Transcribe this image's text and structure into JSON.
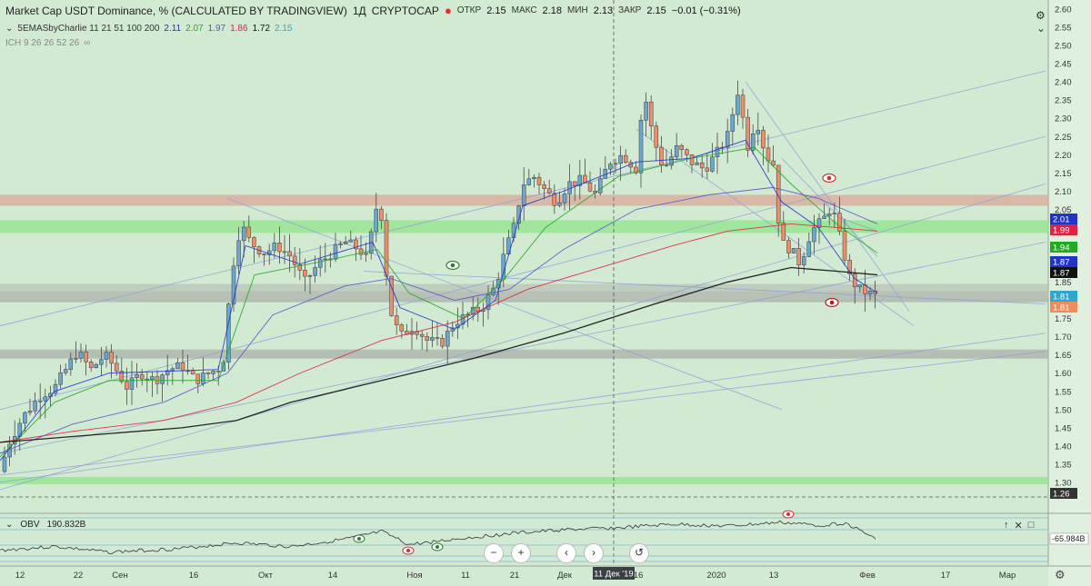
{
  "header": {
    "symbol_title": "Market Cap USDT Dominance, % (CALCULATED BY TRADINGVIEW)",
    "interval": "1Д",
    "exchange": "CRYPTOCAP",
    "open_label": "ОТКР",
    "open_value": "2.15",
    "high_label": "МАКС",
    "high_value": "2.18",
    "low_label": "МИН",
    "low_value": "2.13",
    "close_label": "ЗАКР",
    "close_value": "2.15",
    "change": "−0.01 (−0.31%)"
  },
  "indicators": {
    "ema": {
      "label": "5EMASbyCharlie 11 21 51 100 200",
      "v1": "2.11",
      "v2": "2.07",
      "v3": "1.97",
      "v4": "1.86",
      "v5": "1.72",
      "v6": "2.15"
    },
    "ich": {
      "label": "ICH 9 26 26 52 26"
    },
    "obv": {
      "label": "OBV",
      "value": "190.832B",
      "scale_value": "-65.984B"
    }
  },
  "toolbar": {
    "zoom_out": "−",
    "zoom_in": "+",
    "scroll_left": "‹",
    "scroll_right": "›",
    "reset": "↺",
    "up_icon": "↑",
    "close_icon": "✕",
    "maximize_icon": "□",
    "collapse_icon": "⌄",
    "cross_icon": "+",
    "settings_icon": "⚙"
  },
  "colors": {
    "background": "#d3ead2",
    "up_candle": "#6ca7ce",
    "down_candle": "#ec8f6a",
    "ema11": "#2233cc",
    "ema21": "#22aa22",
    "ema51": "#5555cc",
    "ema100": "#dd2244",
    "ema200": "#111111",
    "price_badge": "#2ea6d0"
  },
  "chart_data": {
    "type": "candlestick",
    "ylim": [
      1.25,
      2.61
    ],
    "ytick_labels": [
      "1.30",
      "1.35",
      "1.40",
      "1.45",
      "1.50",
      "1.55",
      "1.60",
      "1.65",
      "1.70",
      "1.75",
      "1.80",
      "1.85",
      "1.90",
      "1.95",
      "2.00",
      "2.05",
      "2.10",
      "2.15",
      "2.20",
      "2.25",
      "2.30",
      "2.35",
      "2.40",
      "2.45",
      "2.50",
      "2.55",
      "2.60"
    ],
    "xtick_labels": [
      "12",
      "22",
      "Сен",
      "16",
      "Окт",
      "14",
      "Ноя",
      "11",
      "21",
      "Дек",
      "16",
      "2020",
      "13",
      "Фев",
      "17",
      "Мар"
    ],
    "crosshair_date": "11 Дек '19",
    "price_badges": [
      {
        "value": "2.01",
        "color": "#2233cc"
      },
      {
        "value": "1.99",
        "color": "#dd2244"
      },
      {
        "value": "1.94",
        "color": "#22aa22"
      },
      {
        "value": "1.87",
        "color": "#2233cc"
      },
      {
        "value": "1.87",
        "color": "#111111"
      },
      {
        "value": "1.81",
        "color": "#2ea6d0"
      },
      {
        "value": "1.81",
        "color": "#ef8c5c"
      },
      {
        "value": "1.26",
        "color": "#333333"
      }
    ],
    "zones": [
      {
        "from": 2.06,
        "to": 2.09,
        "color": "#d9a89a"
      },
      {
        "from": 1.985,
        "to": 2.02,
        "color": "#8fe48a"
      },
      {
        "from": 1.795,
        "to": 1.825,
        "color": "#aab0a8"
      },
      {
        "from": 1.805,
        "to": 1.845,
        "color": "#b9c1b6"
      },
      {
        "from": 1.64,
        "to": 1.665,
        "color": "#aab0a8"
      },
      {
        "from": 1.295,
        "to": 1.315,
        "color": "#8fe48a"
      }
    ],
    "close_path": [
      [
        0,
        1.33
      ],
      [
        10,
        1.41
      ],
      [
        25,
        1.48
      ],
      [
        45,
        1.54
      ],
      [
        60,
        1.56
      ],
      [
        75,
        1.62
      ],
      [
        85,
        1.66
      ],
      [
        100,
        1.61
      ],
      [
        115,
        1.65
      ],
      [
        125,
        1.62
      ],
      [
        140,
        1.56
      ],
      [
        155,
        1.6
      ],
      [
        170,
        1.58
      ],
      [
        185,
        1.61
      ],
      [
        200,
        1.62
      ],
      [
        215,
        1.58
      ],
      [
        230,
        1.6
      ],
      [
        245,
        1.62
      ],
      [
        255,
        1.88
      ],
      [
        265,
        2.01
      ],
      [
        275,
        1.96
      ],
      [
        290,
        1.93
      ],
      [
        305,
        1.95
      ],
      [
        320,
        1.92
      ],
      [
        335,
        1.85
      ],
      [
        350,
        1.9
      ],
      [
        365,
        1.93
      ],
      [
        380,
        1.96
      ],
      [
        395,
        1.94
      ],
      [
        405,
        1.91
      ],
      [
        412,
        2.06
      ],
      [
        420,
        2.03
      ],
      [
        428,
        1.78
      ],
      [
        440,
        1.7
      ],
      [
        455,
        1.73
      ],
      [
        470,
        1.69
      ],
      [
        485,
        1.68
      ],
      [
        500,
        1.74
      ],
      [
        515,
        1.76
      ],
      [
        530,
        1.78
      ],
      [
        545,
        1.84
      ],
      [
        555,
        1.93
      ],
      [
        565,
        2.0
      ],
      [
        575,
        2.12
      ],
      [
        588,
        2.14
      ],
      [
        600,
        2.1
      ],
      [
        612,
        2.07
      ],
      [
        625,
        2.12
      ],
      [
        640,
        2.13
      ],
      [
        655,
        2.09
      ],
      [
        670,
        2.18
      ],
      [
        685,
        2.2
      ],
      [
        700,
        2.16
      ],
      [
        708,
        2.38
      ],
      [
        718,
        2.25
      ],
      [
        730,
        2.16
      ],
      [
        745,
        2.22
      ],
      [
        760,
        2.18
      ],
      [
        775,
        2.16
      ],
      [
        790,
        2.21
      ],
      [
        800,
        2.25
      ],
      [
        812,
        2.38
      ],
      [
        822,
        2.22
      ],
      [
        832,
        2.3
      ],
      [
        842,
        2.2
      ],
      [
        852,
        2.17
      ],
      [
        858,
        1.96
      ],
      [
        870,
        1.94
      ],
      [
        880,
        1.9
      ],
      [
        892,
        1.99
      ],
      [
        905,
        2.02
      ],
      [
        915,
        2.06
      ],
      [
        925,
        1.96
      ],
      [
        935,
        1.86
      ],
      [
        945,
        1.83
      ],
      [
        955,
        1.82
      ],
      [
        965,
        1.81
      ]
    ],
    "ema_series": [
      {
        "name": "11",
        "values": [
          [
            0,
            1.36
          ],
          [
            60,
            1.55
          ],
          [
            120,
            1.6
          ],
          [
            240,
            1.61
          ],
          [
            270,
            1.95
          ],
          [
            330,
            1.9
          ],
          [
            410,
            1.96
          ],
          [
            440,
            1.78
          ],
          [
            500,
            1.72
          ],
          [
            545,
            1.8
          ],
          [
            575,
            2.06
          ],
          [
            620,
            2.1
          ],
          [
            700,
            2.18
          ],
          [
            760,
            2.19
          ],
          [
            820,
            2.24
          ],
          [
            860,
            2.07
          ],
          [
            900,
            2.0
          ],
          [
            940,
            1.86
          ],
          [
            965,
            1.82
          ]
        ]
      },
      {
        "name": "21",
        "values": [
          [
            0,
            1.37
          ],
          [
            60,
            1.52
          ],
          [
            120,
            1.58
          ],
          [
            240,
            1.58
          ],
          [
            280,
            1.87
          ],
          [
            360,
            1.91
          ],
          [
            415,
            1.94
          ],
          [
            450,
            1.82
          ],
          [
            510,
            1.75
          ],
          [
            555,
            1.86
          ],
          [
            600,
            2.0
          ],
          [
            680,
            2.14
          ],
          [
            760,
            2.19
          ],
          [
            830,
            2.22
          ],
          [
            870,
            2.12
          ],
          [
            920,
            2.01
          ],
          [
            965,
            1.93
          ]
        ]
      },
      {
        "name": "51",
        "values": [
          [
            0,
            1.38
          ],
          [
            80,
            1.46
          ],
          [
            180,
            1.52
          ],
          [
            250,
            1.6
          ],
          [
            300,
            1.76
          ],
          [
            380,
            1.84
          ],
          [
            430,
            1.86
          ],
          [
            500,
            1.8
          ],
          [
            560,
            1.83
          ],
          [
            620,
            1.94
          ],
          [
            700,
            2.05
          ],
          [
            780,
            2.09
          ],
          [
            850,
            2.11
          ],
          [
            900,
            2.08
          ],
          [
            965,
            2.01
          ]
        ]
      },
      {
        "name": "100",
        "values": [
          [
            0,
            1.41
          ],
          [
            80,
            1.44
          ],
          [
            180,
            1.47
          ],
          [
            260,
            1.52
          ],
          [
            330,
            1.6
          ],
          [
            420,
            1.69
          ],
          [
            500,
            1.74
          ],
          [
            580,
            1.83
          ],
          [
            660,
            1.89
          ],
          [
            740,
            1.95
          ],
          [
            800,
            1.99
          ],
          [
            870,
            2.01
          ],
          [
            920,
            2.0
          ],
          [
            965,
            1.99
          ]
        ]
      },
      {
        "name": "200",
        "values": [
          [
            0,
            1.41
          ],
          [
            100,
            1.43
          ],
          [
            200,
            1.45
          ],
          [
            260,
            1.47
          ],
          [
            320,
            1.52
          ],
          [
            420,
            1.58
          ],
          [
            520,
            1.64
          ],
          [
            620,
            1.71
          ],
          [
            720,
            1.79
          ],
          [
            800,
            1.85
          ],
          [
            870,
            1.89
          ],
          [
            920,
            1.88
          ],
          [
            965,
            1.87
          ]
        ]
      }
    ],
    "trend_lines": [
      [
        [
          0,
          1.28
        ],
        [
          1150,
          2.12
        ]
      ],
      [
        [
          0,
          1.38
        ],
        [
          1150,
          1.96
        ]
      ],
      [
        [
          0,
          1.3
        ],
        [
          1150,
          1.71
        ]
      ],
      [
        [
          0,
          1.5
        ],
        [
          1150,
          2.25
        ]
      ],
      [
        [
          0,
          1.32
        ],
        [
          1150,
          1.66
        ]
      ],
      [
        [
          250,
          2.08
        ],
        [
          860,
          1.5
        ]
      ],
      [
        [
          700,
          2.27
        ],
        [
          1005,
          1.73
        ]
      ],
      [
        [
          820,
          2.4
        ],
        [
          1000,
          1.77
        ]
      ],
      [
        [
          860,
          2.19
        ],
        [
          965,
          1.92
        ]
      ],
      [
        [
          920,
          2.03
        ],
        [
          965,
          1.99
        ]
      ],
      [
        [
          0,
          1.73
        ],
        [
          1150,
          2.43
        ]
      ],
      [
        [
          400,
          1.88
        ],
        [
          1150,
          1.79
        ]
      ]
    ],
    "obv": {
      "label": "OBV",
      "value": "190.832B",
      "baseline": "-65.984B",
      "path": [
        [
          0,
          0.25
        ],
        [
          60,
          0.35
        ],
        [
          120,
          0.2
        ],
        [
          200,
          0.3
        ],
        [
          260,
          0.45
        ],
        [
          320,
          0.35
        ],
        [
          380,
          0.55
        ],
        [
          420,
          0.75
        ],
        [
          450,
          0.4
        ],
        [
          500,
          0.55
        ],
        [
          560,
          0.7
        ],
        [
          620,
          0.8
        ],
        [
          680,
          0.85
        ],
        [
          740,
          0.95
        ],
        [
          800,
          0.9
        ],
        [
          860,
          1.0
        ],
        [
          900,
          0.92
        ],
        [
          930,
          0.98
        ],
        [
          960,
          0.6
        ]
      ]
    }
  }
}
